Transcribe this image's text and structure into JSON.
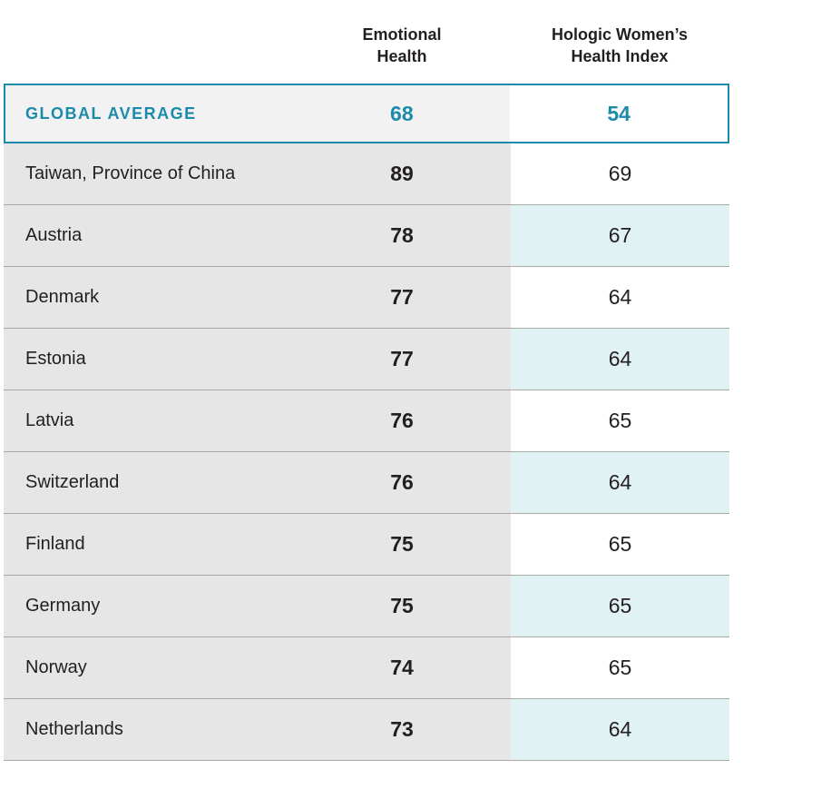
{
  "chart_data": {
    "type": "table",
    "columns": [
      "",
      "Emotional Health",
      "Hologic Women's Health Index"
    ],
    "header_lines": {
      "emotional_health": [
        "Emotional",
        "Health"
      ],
      "hwhi": [
        "Hologic Women’s",
        "Health Index"
      ]
    },
    "global_average": {
      "label": "GLOBAL AVERAGE",
      "emotional_health": 68,
      "hwhi": 54
    },
    "rows": [
      {
        "country": "Taiwan, Province of China",
        "emotional_health": 89,
        "hwhi": 69
      },
      {
        "country": "Austria",
        "emotional_health": 78,
        "hwhi": 67
      },
      {
        "country": "Denmark",
        "emotional_health": 77,
        "hwhi": 64
      },
      {
        "country": "Estonia",
        "emotional_health": 77,
        "hwhi": 64
      },
      {
        "country": "Latvia",
        "emotional_health": 76,
        "hwhi": 65
      },
      {
        "country": "Switzerland",
        "emotional_health": 76,
        "hwhi": 64
      },
      {
        "country": "Finland",
        "emotional_health": 75,
        "hwhi": 65
      },
      {
        "country": "Germany",
        "emotional_health": 75,
        "hwhi": 65
      },
      {
        "country": "Norway",
        "emotional_health": 74,
        "hwhi": 65
      },
      {
        "country": "Netherlands",
        "emotional_health": 73,
        "hwhi": 64
      }
    ]
  },
  "colors": {
    "accent": "#1b8aab",
    "grey_band": "#e6e6e6",
    "tint": "#e1f2f5",
    "divider": "#a9a9a9"
  }
}
